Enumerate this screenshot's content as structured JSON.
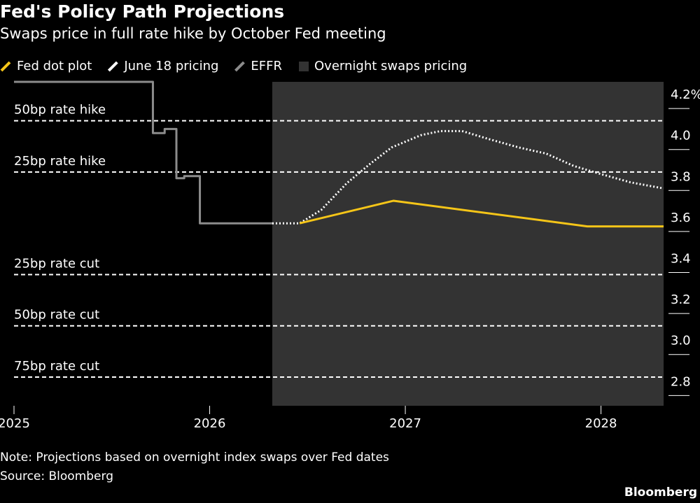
{
  "chart_data": {
    "type": "line",
    "title": "Fed's Policy Path Projections",
    "subtitle": "Swaps price in full rate hike by October Fed meeting",
    "xlim": [
      2025,
      2028.32
    ],
    "xticks": [
      2025,
      2026,
      2027,
      2028
    ],
    "ylim": [
      2.75,
      4.33
    ],
    "yticks": [
      {
        "value": 4.2,
        "label": "4.2%"
      },
      {
        "value": 4,
        "label": "4.0"
      },
      3.8,
      3.6,
      3.4,
      3.2,
      {
        "value": 3,
        "label": "3.0"
      },
      2.8
    ],
    "shade": {
      "label": "Overnight swaps pricing",
      "start": 2026.32,
      "color": "#333333"
    },
    "reference_lines": [
      {
        "label": "50bp rate hike",
        "value": 4.14
      },
      {
        "label": "25bp rate hike",
        "value": 3.89
      },
      {
        "label": "25bp rate cut",
        "value": 3.39
      },
      {
        "label": "50bp rate cut",
        "value": 3.14
      },
      {
        "label": "75bp rate cut",
        "value": 2.89
      }
    ],
    "series": [
      {
        "name": "Fed dot plot",
        "color": "#f5c518",
        "style": "solid",
        "x": [
          2026.46,
          2026.94,
          2027.93,
          2028.32
        ],
        "values": [
          3.64,
          3.75,
          3.625,
          3.625
        ]
      },
      {
        "name": "June 18 pricing",
        "color": "#ffffff",
        "style": "dotted",
        "x": [
          2026.32,
          2026.46,
          2026.57,
          2026.7,
          2026.82,
          2026.93,
          2027.08,
          2027.18,
          2027.29,
          2027.43,
          2027.58,
          2027.72,
          2027.86,
          2028.0,
          2028.15,
          2028.32
        ],
        "values": [
          3.64,
          3.64,
          3.705,
          3.835,
          3.93,
          4.01,
          4.07,
          4.09,
          4.09,
          4.05,
          4.01,
          3.98,
          3.92,
          3.88,
          3.84,
          3.81
        ]
      },
      {
        "name": "EFFR",
        "color": "#8c8c8c",
        "style": "solid",
        "x": [
          2025.0,
          2025.71,
          2025.71,
          2025.77,
          2025.77,
          2025.83,
          2025.83,
          2025.87,
          2025.87,
          2025.95,
          2025.95,
          2026.32
        ],
        "values": [
          4.33,
          4.33,
          4.08,
          4.08,
          4.1,
          4.1,
          3.86,
          3.86,
          3.87,
          3.87,
          3.64,
          3.64
        ]
      }
    ],
    "note": "Note: Projections based on overnight index swaps over Fed dates",
    "source": "Source: Bloomberg",
    "brand": "Bloomberg"
  }
}
